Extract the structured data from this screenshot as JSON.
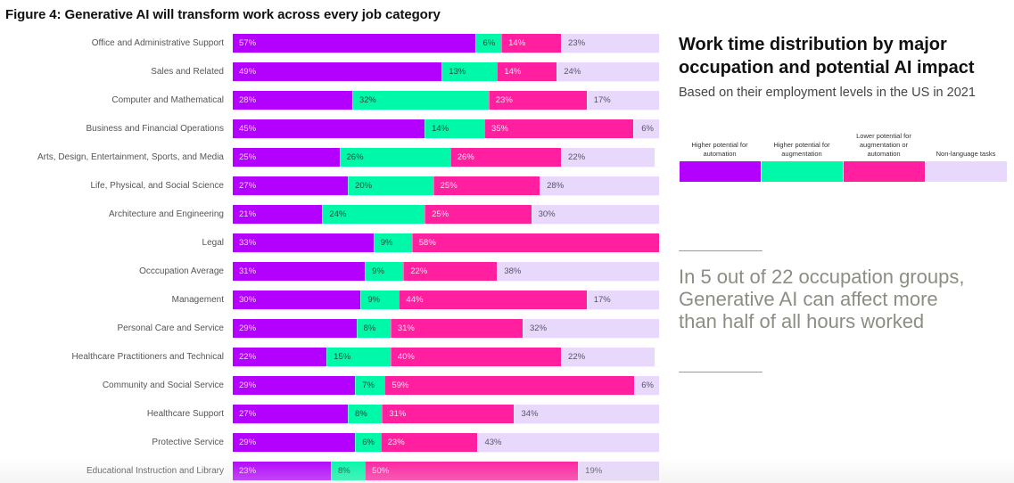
{
  "figure_title": "Figure 4: Generative AI will transform work across every job category",
  "side_panel": {
    "title": "Work time distribution by major occupation and potential AI impact",
    "subtitle": "Based on their employment levels in the US in 2021",
    "callout": "In 5 out of 22 occupation groups, Generative AI can affect more than half of all hours worked"
  },
  "chart_data": {
    "type": "bar",
    "orientation": "horizontal",
    "stacked": true,
    "normalized": true,
    "title": "Figure 4: Generative AI will transform work across every job category",
    "subtitle": "Work time distribution by major occupation and potential AI impact — Based on their employment levels in the US in 2021",
    "xlabel": "",
    "ylabel": "",
    "xlim": [
      0,
      100
    ],
    "grid": false,
    "legend_position": "right",
    "value_suffix": "%",
    "categories": [
      "Office and Administrative Support",
      "Sales and Related",
      "Computer and Mathematical",
      "Business and Financial Operations",
      "Arts, Design, Entertainment, Sports, and Media",
      "Life, Physical, and Social Science",
      "Architecture and Engineering",
      "Legal",
      "Occcupation Average",
      "Management",
      "Personal Care and Service",
      "Healthcare Practitioners and Technical",
      "Community and Social Service",
      "Healthcare Support",
      "Protective Service",
      "Educational Instruction and Library"
    ],
    "series": [
      {
        "key": "automation",
        "name": "Higher potential for automation",
        "color": "#b300ff",
        "values": [
          57,
          49,
          28,
          45,
          25,
          27,
          21,
          33,
          31,
          30,
          29,
          22,
          29,
          27,
          29,
          23
        ]
      },
      {
        "key": "augmentation",
        "name": "Higher potential for augmentation",
        "color": "#00f9a8",
        "values": [
          6,
          13,
          32,
          14,
          26,
          20,
          24,
          9,
          9,
          9,
          8,
          15,
          7,
          8,
          6,
          8
        ]
      },
      {
        "key": "lower",
        "name": "Lower potential for augmentation or automation",
        "color": "#ff1f9f",
        "values": [
          14,
          14,
          23,
          35,
          26,
          25,
          25,
          58,
          22,
          44,
          31,
          40,
          59,
          31,
          23,
          50
        ]
      },
      {
        "key": "nonlang",
        "name": "Non-language tasks",
        "color": "#e8d8fc",
        "values": [
          23,
          24,
          17,
          6,
          22,
          28,
          30,
          0,
          38,
          17,
          32,
          22,
          6,
          34,
          43,
          19
        ]
      }
    ]
  }
}
